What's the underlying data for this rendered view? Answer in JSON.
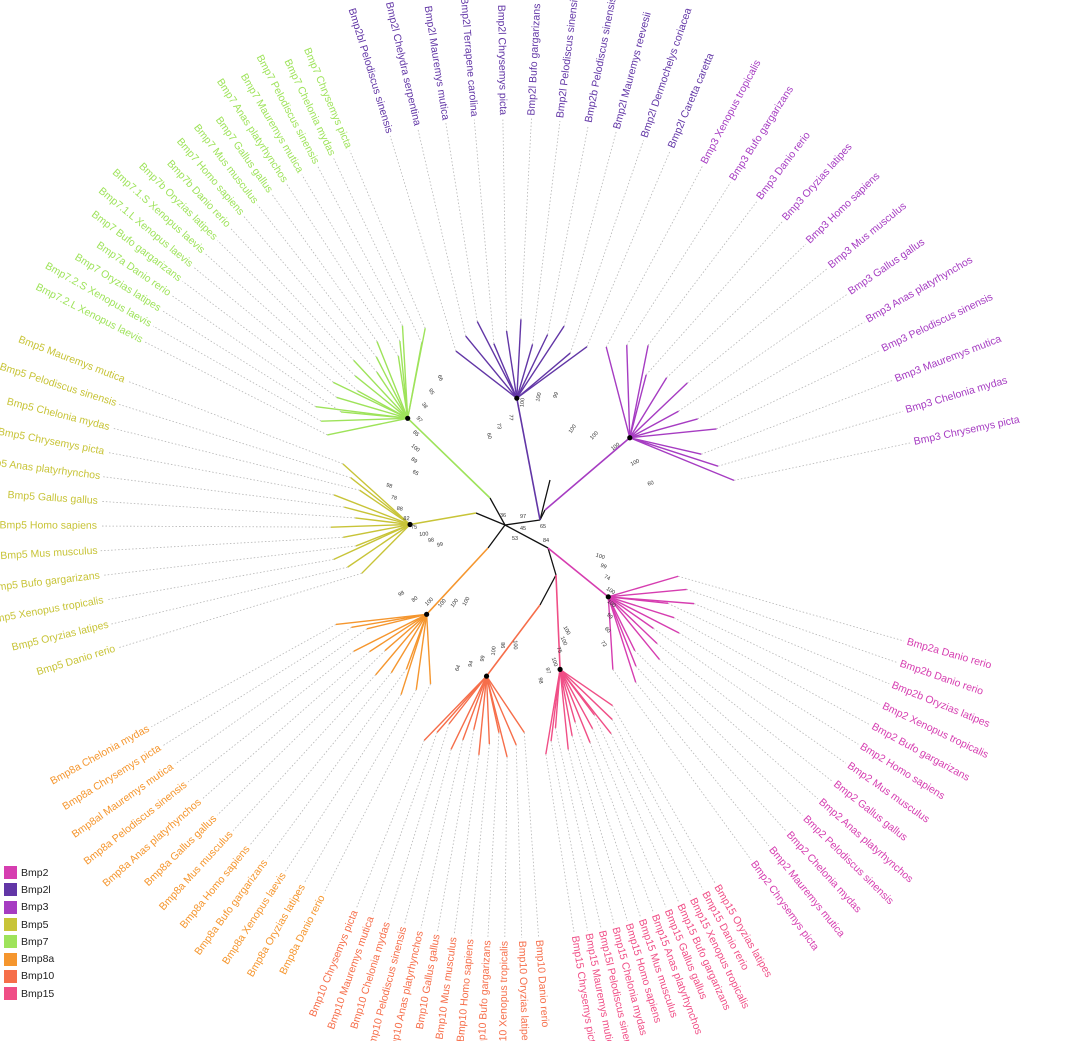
{
  "clades": [
    {
      "name": "Bmp2",
      "color": "#d63db0"
    },
    {
      "name": "Bmp2l",
      "color": "#6236a6"
    },
    {
      "name": "Bmp3",
      "color": "#a63cc2"
    },
    {
      "name": "Bmp5",
      "color": "#c8c438"
    },
    {
      "name": "Bmp7",
      "color": "#9ee35a"
    },
    {
      "name": "Bmp8a",
      "color": "#f5962e"
    },
    {
      "name": "Bmp10",
      "color": "#f66e4a"
    },
    {
      "name": "Bmp15",
      "color": "#f04e86"
    }
  ],
  "tips": [
    {
      "text": "Bmp2a Danio rerio",
      "clade": "Bmp2"
    },
    {
      "text": "Bmp2b Danio rerio",
      "clade": "Bmp2"
    },
    {
      "text": "Bmp2b Oryzias latipes",
      "clade": "Bmp2"
    },
    {
      "text": "Bmp2 Xenopus tropicalis",
      "clade": "Bmp2"
    },
    {
      "text": "Bmp2 Bufo gargarizans",
      "clade": "Bmp2"
    },
    {
      "text": "Bmp2 Homo sapiens",
      "clade": "Bmp2"
    },
    {
      "text": "Bmp2 Mus musculus",
      "clade": "Bmp2"
    },
    {
      "text": "Bmp2 Gallus gallus",
      "clade": "Bmp2"
    },
    {
      "text": "Bmp2 Anas platyrhynchos",
      "clade": "Bmp2"
    },
    {
      "text": "Bmp2 Pelodiscus sinensis",
      "clade": "Bmp2"
    },
    {
      "text": "Bmp2 Chelonia mydas",
      "clade": "Bmp2"
    },
    {
      "text": "Bmp2 Mauremys mutica",
      "clade": "Bmp2"
    },
    {
      "text": "Bmp2 Chrysemys picta",
      "clade": "Bmp2"
    },
    {
      "text": "Bmp15 Oryzias latipes",
      "clade": "Bmp15"
    },
    {
      "text": "Bmp15 Danio rerio",
      "clade": "Bmp15"
    },
    {
      "text": "Bmp15 Xenopus tropicalis",
      "clade": "Bmp15"
    },
    {
      "text": "Bmp15 Bufo gargarizans",
      "clade": "Bmp15"
    },
    {
      "text": "Bmp15 Gallus gallus",
      "clade": "Bmp15"
    },
    {
      "text": "Bmp15 Anas platyrhynchos",
      "clade": "Bmp15"
    },
    {
      "text": "Bmp15 Mus musculus",
      "clade": "Bmp15"
    },
    {
      "text": "Bmp15 Homo sapiens",
      "clade": "Bmp15"
    },
    {
      "text": "Bmp15 Chelonia mydas",
      "clade": "Bmp15"
    },
    {
      "text": "Bmp15l Pelodiscus sinensis",
      "clade": "Bmp15"
    },
    {
      "text": "Bmp15 Mauremys mutica",
      "clade": "Bmp15"
    },
    {
      "text": "Bmp15 Chrysemys picta",
      "clade": "Bmp15"
    },
    {
      "text": "Bmp10 Danio rerio",
      "clade": "Bmp10"
    },
    {
      "text": "Bmp10 Oryzias latipes",
      "clade": "Bmp10"
    },
    {
      "text": "Bmp10 Xenopus tropicalis",
      "clade": "Bmp10"
    },
    {
      "text": "Bmp10 Bufo gargarizans",
      "clade": "Bmp10"
    },
    {
      "text": "Bmp10 Homo sapiens",
      "clade": "Bmp10"
    },
    {
      "text": "Bmp10 Mus musculus",
      "clade": "Bmp10"
    },
    {
      "text": "Bmp10 Gallus gallus",
      "clade": "Bmp10"
    },
    {
      "text": "Bmp10 Anas platyrhynchos",
      "clade": "Bmp10"
    },
    {
      "text": "Bmp10 Pelodiscus sinensis",
      "clade": "Bmp10"
    },
    {
      "text": "Bmp10 Chelonia mydas",
      "clade": "Bmp10"
    },
    {
      "text": "Bmp10 Mauremys mutica",
      "clade": "Bmp10"
    },
    {
      "text": "Bmp10 Chrysemys picta",
      "clade": "Bmp10"
    },
    {
      "text": "Bmp8a Danio rerio",
      "clade": "Bmp8a"
    },
    {
      "text": "Bmp8a Oryzias latipes",
      "clade": "Bmp8a"
    },
    {
      "text": "Bmp8a Xenopus laevis",
      "clade": "Bmp8a"
    },
    {
      "text": "Bmp8a Bufo gargarizans",
      "clade": "Bmp8a"
    },
    {
      "text": "Bmp8a Homo sapiens",
      "clade": "Bmp8a"
    },
    {
      "text": "Bmp8a Mus musculus",
      "clade": "Bmp8a"
    },
    {
      "text": "Bmp8a Gallus gallus",
      "clade": "Bmp8a"
    },
    {
      "text": "Bmp8a Anas platyrhynchos",
      "clade": "Bmp8a"
    },
    {
      "text": "Bmp8a Pelodiscus sinensis",
      "clade": "Bmp8a"
    },
    {
      "text": "Bmp8al Mauremys mutica",
      "clade": "Bmp8a"
    },
    {
      "text": "Bmp8a Chrysemys picta",
      "clade": "Bmp8a"
    },
    {
      "text": "Bmp8a Chelonia mydas",
      "clade": "Bmp8a"
    },
    {
      "text": "Bmp5 Danio rerio",
      "clade": "Bmp5"
    },
    {
      "text": "Bmp5 Oryzias latipes",
      "clade": "Bmp5"
    },
    {
      "text": "Bmp5 Xenopus tropicalis",
      "clade": "Bmp5"
    },
    {
      "text": "Bmp5 Bufo gargarizans",
      "clade": "Bmp5"
    },
    {
      "text": "Bmp5 Mus musculus",
      "clade": "Bmp5"
    },
    {
      "text": "Bmp5 Homo sapiens",
      "clade": "Bmp5"
    },
    {
      "text": "Bmp5 Gallus gallus",
      "clade": "Bmp5"
    },
    {
      "text": "Bmp5 Anas platyrhynchos",
      "clade": "Bmp5"
    },
    {
      "text": "Bmp5 Chrysemys picta",
      "clade": "Bmp5"
    },
    {
      "text": "Bmp5 Chelonia mydas",
      "clade": "Bmp5"
    },
    {
      "text": "Bmp5 Pelodiscus sinensis",
      "clade": "Bmp5"
    },
    {
      "text": "Bmp5 Mauremys mutica",
      "clade": "Bmp5"
    },
    {
      "text": "Bmp7.2.L Xenopus laevis",
      "clade": "Bmp7"
    },
    {
      "text": "Bmp7.2.S Xenopus laevis",
      "clade": "Bmp7"
    },
    {
      "text": "Bmp7 Oryzias latipes",
      "clade": "Bmp7"
    },
    {
      "text": "Bmp7a Danio rerio",
      "clade": "Bmp7"
    },
    {
      "text": "Bmp7 Bufo gargarizans",
      "clade": "Bmp7"
    },
    {
      "text": "Bmp7.1.L Xenopus laevis",
      "clade": "Bmp7"
    },
    {
      "text": "Bmp7.1.S Xenopus laevis",
      "clade": "Bmp7"
    },
    {
      "text": "Bmp7b Oryzias latipes",
      "clade": "Bmp7"
    },
    {
      "text": "Bmp7b Danio rerio",
      "clade": "Bmp7"
    },
    {
      "text": "Bmp7 Homo sapiens",
      "clade": "Bmp7"
    },
    {
      "text": "Bmp7 Mus musculus",
      "clade": "Bmp7"
    },
    {
      "text": "Bmp7 Gallus gallus",
      "clade": "Bmp7"
    },
    {
      "text": "Bmp7 Anas platyrhynchos",
      "clade": "Bmp7"
    },
    {
      "text": "Bmp7 Mauremys mutica",
      "clade": "Bmp7"
    },
    {
      "text": "Bmp7 Pelodiscus sinensis",
      "clade": "Bmp7"
    },
    {
      "text": "Bmp7 Chelonia mydas",
      "clade": "Bmp7"
    },
    {
      "text": "Bmp7 Chrysemys picta",
      "clade": "Bmp7"
    },
    {
      "text": "Bmp2bl Pelodiscus sinensis",
      "clade": "Bmp2l"
    },
    {
      "text": "Bmp2l Chelydra serpentina",
      "clade": "Bmp2l"
    },
    {
      "text": "Bmp2l Mauremys mutica",
      "clade": "Bmp2l"
    },
    {
      "text": "Bmp2l Terrapene carolina",
      "clade": "Bmp2l"
    },
    {
      "text": "Bmp2l Chrysemys picta",
      "clade": "Bmp2l"
    },
    {
      "text": "Bmp2l Bufo gargarizans",
      "clade": "Bmp2l"
    },
    {
      "text": "Bmp2l Pelodiscus sinensis",
      "clade": "Bmp2l"
    },
    {
      "text": "Bmp2b Pelodiscus sinensis",
      "clade": "Bmp2l"
    },
    {
      "text": "Bmp2l Mauremys reevesii",
      "clade": "Bmp2l"
    },
    {
      "text": "Bmp2l Dermochelys coriacea",
      "clade": "Bmp2l"
    },
    {
      "text": "Bmp2l Caretta caretta",
      "clade": "Bmp2l"
    },
    {
      "text": "Bmp3 Xenopus tropicalis",
      "clade": "Bmp3"
    },
    {
      "text": "Bmp3 Bufo gargarizans",
      "clade": "Bmp3"
    },
    {
      "text": "Bmp3 Danio rerio",
      "clade": "Bmp3"
    },
    {
      "text": "Bmp3 Oryzias latipes",
      "clade": "Bmp3"
    },
    {
      "text": "Bmp3 Homo sapiens",
      "clade": "Bmp3"
    },
    {
      "text": "Bmp3 Mus musculus",
      "clade": "Bmp3"
    },
    {
      "text": "Bmp3 Gallus gallus",
      "clade": "Bmp3"
    },
    {
      "text": "Bmp3 Anas platyrhynchos",
      "clade": "Bmp3"
    },
    {
      "text": "Bmp3 Pelodiscus sinensis",
      "clade": "Bmp3"
    },
    {
      "text": "Bmp3 Mauremys mutica",
      "clade": "Bmp3"
    },
    {
      "text": "Bmp3 Chelonia mydas",
      "clade": "Bmp3"
    },
    {
      "text": "Bmp3 Chrysemys picta",
      "clade": "Bmp3"
    }
  ],
  "bootstrap_values": [
    {
      "value": "100",
      "clade": "Bmp2"
    },
    {
      "value": "99",
      "clade": "Bmp2"
    },
    {
      "value": "74",
      "clade": "Bmp2"
    },
    {
      "value": "100",
      "clade": "Bmp2"
    },
    {
      "value": "100",
      "clade": "Bmp2"
    },
    {
      "value": "99",
      "clade": "Bmp2"
    },
    {
      "value": "60",
      "clade": "Bmp2"
    },
    {
      "value": "72",
      "clade": "Bmp2"
    },
    {
      "value": "100",
      "clade": "Bmp15"
    },
    {
      "value": "100",
      "clade": "Bmp15"
    },
    {
      "value": "75",
      "clade": "Bmp15"
    },
    {
      "value": "100",
      "clade": "Bmp15"
    },
    {
      "value": "97",
      "clade": "Bmp15"
    },
    {
      "value": "98",
      "clade": "Bmp15"
    },
    {
      "value": "100",
      "clade": "Bmp10"
    },
    {
      "value": "98",
      "clade": "Bmp10"
    },
    {
      "value": "100",
      "clade": "Bmp10"
    },
    {
      "value": "99",
      "clade": "Bmp10"
    },
    {
      "value": "94",
      "clade": "Bmp10"
    },
    {
      "value": "64",
      "clade": "Bmp10"
    },
    {
      "value": "100",
      "clade": "Bmp8a"
    },
    {
      "value": "100",
      "clade": "Bmp8a"
    },
    {
      "value": "100",
      "clade": "Bmp8a"
    },
    {
      "value": "100",
      "clade": "Bmp8a"
    },
    {
      "value": "80",
      "clade": "Bmp8a"
    },
    {
      "value": "98",
      "clade": "Bmp8a"
    },
    {
      "value": "99",
      "clade": "Bmp5"
    },
    {
      "value": "98",
      "clade": "Bmp5"
    },
    {
      "value": "100",
      "clade": "Bmp5"
    },
    {
      "value": "75",
      "clade": "Bmp5"
    },
    {
      "value": "82",
      "clade": "Bmp5"
    },
    {
      "value": "88",
      "clade": "Bmp5"
    },
    {
      "value": "78",
      "clade": "Bmp5"
    },
    {
      "value": "98",
      "clade": "Bmp5"
    },
    {
      "value": "65",
      "clade": "Bmp7"
    },
    {
      "value": "89",
      "clade": "Bmp7"
    },
    {
      "value": "100",
      "clade": "Bmp7"
    },
    {
      "value": "85",
      "clade": "Bmp7"
    },
    {
      "value": "97",
      "clade": "Bmp7"
    },
    {
      "value": "38",
      "clade": "Bmp7"
    },
    {
      "value": "95",
      "clade": "Bmp7"
    },
    {
      "value": "66",
      "clade": "Bmp7"
    },
    {
      "value": "60",
      "clade": "Bmp2l"
    },
    {
      "value": "73",
      "clade": "Bmp2l"
    },
    {
      "value": "77",
      "clade": "Bmp2l"
    },
    {
      "value": "100",
      "clade": "Bmp2l"
    },
    {
      "value": "100",
      "clade": "Bmp2l"
    },
    {
      "value": "99",
      "clade": "Bmp2l"
    },
    {
      "value": "100",
      "clade": "Bmp3"
    },
    {
      "value": "100",
      "clade": "Bmp3"
    },
    {
      "value": "100",
      "clade": "Bmp3"
    },
    {
      "value": "100",
      "clade": "Bmp3"
    },
    {
      "value": "60",
      "clade": "Bmp3"
    },
    {
      "value": "97",
      "clade": "backbone"
    },
    {
      "value": "53",
      "clade": "backbone"
    },
    {
      "value": "65",
      "clade": "backbone"
    },
    {
      "value": "45",
      "clade": "backbone"
    },
    {
      "value": "36",
      "clade": "backbone"
    },
    {
      "value": "84",
      "clade": "backbone"
    }
  ],
  "legend": [
    {
      "label": "Bmp2",
      "color": "#d63db0"
    },
    {
      "label": "Bmp2l",
      "color": "#6236a6"
    },
    {
      "label": "Bmp3",
      "color": "#a63cc2"
    },
    {
      "label": "Bmp5",
      "color": "#c8c438"
    },
    {
      "label": "Bmp7",
      "color": "#9ee35a"
    },
    {
      "label": "Bmp8a",
      "color": "#f5962e"
    },
    {
      "label": "Bmp10",
      "color": "#f66e4a"
    },
    {
      "label": "Bmp15",
      "color": "#f04e86"
    }
  ]
}
